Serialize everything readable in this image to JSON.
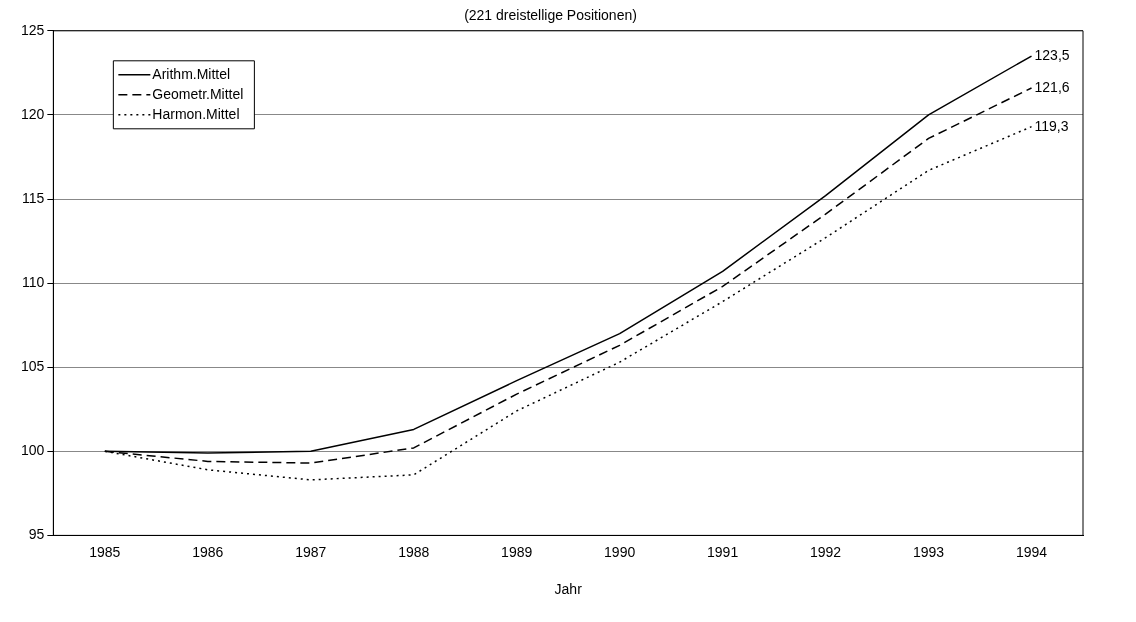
{
  "chart_data": {
    "type": "line",
    "subtitle": "(221 dreistellige Positionen)",
    "xlabel": "Jahr",
    "categories": [
      "1985",
      "1986",
      "1987",
      "1988",
      "1989",
      "1990",
      "1991",
      "1992",
      "1993",
      "1994"
    ],
    "ylim": [
      95,
      125
    ],
    "yticks": [
      95,
      100,
      105,
      110,
      115,
      120,
      125
    ],
    "grid": "y",
    "legend": "top left",
    "marker": "none",
    "series": [
      {
        "name": "Arithm.Mittel",
        "color": "#000000",
        "line_style": "solid",
        "values": [
          100,
          99.9,
          100,
          101.3,
          104.2,
          107,
          110.7,
          115.2,
          120,
          123.5
        ],
        "value_labels": [
          null,
          null,
          null,
          null,
          null,
          null,
          null,
          null,
          null,
          "123,5"
        ]
      },
      {
        "name": "Geometr.Mittel",
        "color": "#000000",
        "line_style": "dashed",
        "values": [
          100,
          99.4,
          99.3,
          100.2,
          103.4,
          106.3,
          109.8,
          114.1,
          118.6,
          121.6
        ],
        "value_labels": [
          null,
          null,
          null,
          null,
          null,
          null,
          null,
          null,
          null,
          "121,6"
        ]
      },
      {
        "name": "Harmon.Mittel",
        "color": "#000000",
        "line_style": "dotted",
        "values": [
          100,
          98.9,
          98.3,
          98.6,
          102.4,
          105.3,
          108.9,
          112.7,
          116.7,
          119.3
        ],
        "value_labels": [
          null,
          null,
          null,
          null,
          null,
          null,
          null,
          null,
          null,
          "119,3"
        ]
      }
    ]
  }
}
